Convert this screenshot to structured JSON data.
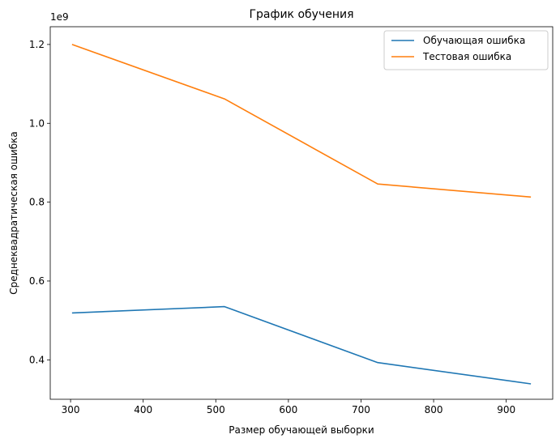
{
  "chart_data": {
    "type": "line",
    "title": "График обучения",
    "xlabel": "Размер обучающей выборки",
    "ylabel": "Среднеквадратическая ошибка",
    "y_offset_label": "1e9",
    "x": [
      302,
      512,
      723,
      934
    ],
    "xlim": [
      272,
      964
    ],
    "ylim": [
      0.3,
      1.245
    ],
    "x_ticks": [
      300,
      400,
      500,
      600,
      700,
      800,
      900
    ],
    "y_ticks": [
      0.4,
      0.6,
      0.8,
      1.0,
      1.2
    ],
    "y_tick_labels": [
      "0.4",
      "0.6",
      "0.8",
      "1.0",
      "1.2"
    ],
    "series": [
      {
        "name": "Обучающая ошибка",
        "color": "#1f77b4",
        "values": [
          0.519,
          0.535,
          0.393,
          0.339
        ]
      },
      {
        "name": "Тестовая ошибка",
        "color": "#ff7f0e",
        "values": [
          1.2,
          1.062,
          0.846,
          0.813
        ]
      }
    ],
    "legend_position": "top-right",
    "grid": false
  }
}
